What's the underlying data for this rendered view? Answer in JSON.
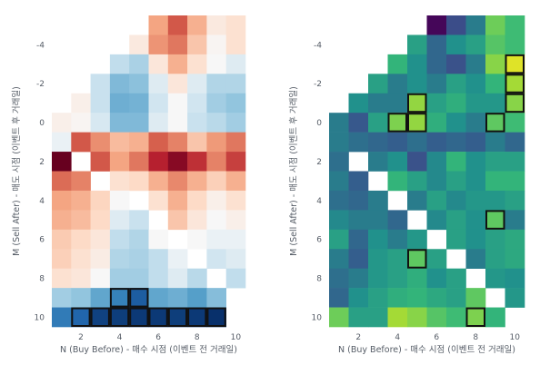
{
  "chart_data": [
    {
      "type": "heatmap",
      "color_scale": "RdBu (red = high, blue = low)",
      "xlabel": "N (Buy Before) - 매수 시점 (이벤트 전 거래일)",
      "ylabel": "M (Sell After) - 매도 시점 (이벤트 후 거래일)",
      "x_ticks": [
        "2",
        "4",
        "6",
        "8",
        "10"
      ],
      "y_ticks": [
        "-4",
        "-2",
        "0",
        "2",
        "4",
        "6",
        "8",
        "10"
      ],
      "x_range": [
        1,
        10
      ],
      "y_range": [
        -5,
        10
      ],
      "grid": false,
      "note_values": "cell values are relative color levels (0 = deepest blue, 1 = deepest red); blank cells are missing",
      "rows": [
        {
          "m": -5,
          "cells": [
            null,
            null,
            null,
            null,
            null,
            0.72,
            0.85,
            0.7,
            0.57,
            0.6
          ]
        },
        {
          "m": -4,
          "cells": [
            null,
            null,
            null,
            null,
            0.57,
            0.75,
            0.8,
            0.66,
            0.53,
            0.6
          ]
        },
        {
          "m": -3,
          "cells": [
            null,
            null,
            null,
            0.44,
            0.41,
            0.58,
            0.7,
            0.6,
            0.52,
            0.48
          ]
        },
        {
          "m": -2,
          "cells": [
            null,
            null,
            0.45,
            0.35,
            0.37,
            0.48,
            0.58,
            0.48,
            0.42,
            0.42
          ]
        },
        {
          "m": -1,
          "cells": [
            null,
            0.55,
            0.45,
            0.32,
            0.33,
            0.46,
            0.52,
            0.46,
            0.4,
            0.38
          ]
        },
        {
          "m": 0,
          "cells": [
            0.55,
            0.53,
            0.47,
            0.35,
            0.35,
            0.48,
            0.52,
            0.45,
            0.43,
            0.4
          ]
        },
        {
          "m": 1,
          "cells": [
            0.5,
            0.85,
            0.76,
            0.68,
            0.7,
            0.84,
            0.78,
            0.66,
            0.74,
            0.8
          ]
        },
        {
          "m": 2,
          "cells": [
            1.0,
            null,
            0.85,
            0.72,
            0.8,
            0.92,
            0.97,
            0.9,
            0.78,
            0.88
          ]
        },
        {
          "m": 3,
          "cells": [
            0.82,
            0.78,
            null,
            0.6,
            0.62,
            0.7,
            0.77,
            0.7,
            0.64,
            0.7
          ]
        },
        {
          "m": 4,
          "cells": [
            0.72,
            0.7,
            0.63,
            0.52,
            null,
            0.6,
            0.7,
            0.62,
            0.55,
            0.6
          ]
        },
        {
          "m": 5,
          "cells": [
            0.7,
            0.68,
            0.62,
            0.48,
            0.45,
            null,
            0.66,
            0.58,
            0.52,
            0.55
          ]
        },
        {
          "m": 6,
          "cells": [
            0.65,
            0.62,
            0.58,
            0.44,
            0.42,
            0.52,
            null,
            0.52,
            0.5,
            0.5
          ]
        },
        {
          "m": 7,
          "cells": [
            0.64,
            0.6,
            0.56,
            0.42,
            0.41,
            0.44,
            0.5,
            null,
            0.46,
            0.48
          ]
        },
        {
          "m": 8,
          "cells": [
            0.6,
            0.58,
            0.52,
            0.4,
            0.4,
            0.44,
            0.48,
            0.43,
            null,
            0.44
          ]
        },
        {
          "m": 9,
          "cells": [
            0.4,
            0.38,
            0.3,
            0.2,
            0.1,
            0.3,
            0.32,
            0.28,
            0.36,
            null
          ]
        },
        {
          "m": 10,
          "cells": [
            0.18,
            0.12,
            0.04,
            0.03,
            0.02,
            0.02,
            0.03,
            0.02,
            0.0,
            null
          ]
        }
      ],
      "highlighted": [
        [
          9,
          4
        ],
        [
          9,
          5
        ],
        [
          10,
          2
        ],
        [
          10,
          3
        ],
        [
          10,
          4
        ],
        [
          10,
          5
        ],
        [
          10,
          6
        ],
        [
          10,
          7
        ],
        [
          10,
          8
        ],
        [
          10,
          9
        ]
      ]
    },
    {
      "type": "heatmap",
      "color_scale": "Viridis (yellow = high, purple = low)",
      "xlabel": "N (Buy Before) - 매수 시점 (이벤트 전 거래일)",
      "ylabel": "M (Sell After) - 매도 시점 (이벤트 후 거래일)",
      "x_ticks": [
        "2",
        "4",
        "6",
        "8",
        "10"
      ],
      "y_ticks": [
        "-4",
        "-2",
        "0",
        "2",
        "4",
        "6",
        "8",
        "10"
      ],
      "x_range": [
        1,
        10
      ],
      "y_range": [
        -5,
        10
      ],
      "grid": false,
      "note_values": "cell values are relative color levels (0 = deepest purple, 1 = brightest yellow); blank cells are missing",
      "rows": [
        {
          "m": -5,
          "cells": [
            null,
            null,
            null,
            null,
            null,
            0.02,
            0.3,
            0.45,
            0.75,
            0.65
          ]
        },
        {
          "m": -4,
          "cells": [
            null,
            null,
            null,
            null,
            0.55,
            0.4,
            0.5,
            0.55,
            0.7,
            0.65
          ]
        },
        {
          "m": -3,
          "cells": [
            null,
            null,
            null,
            0.62,
            0.5,
            0.4,
            0.32,
            0.45,
            0.8,
            0.95
          ]
        },
        {
          "m": -2,
          "cells": [
            null,
            null,
            0.55,
            0.45,
            0.5,
            0.45,
            0.55,
            0.5,
            0.62,
            0.85
          ]
        },
        {
          "m": -1,
          "cells": [
            null,
            0.5,
            0.45,
            0.45,
            0.82,
            0.55,
            0.6,
            0.52,
            0.52,
            0.8
          ]
        },
        {
          "m": 0,
          "cells": [
            0.45,
            0.35,
            0.55,
            0.78,
            0.82,
            0.6,
            0.5,
            0.45,
            0.72,
            0.65
          ]
        },
        {
          "m": 1,
          "cells": [
            0.45,
            0.42,
            0.4,
            0.38,
            0.42,
            0.38,
            0.4,
            0.38,
            0.45,
            0.4
          ]
        },
        {
          "m": 2,
          "cells": [
            0.42,
            null,
            0.45,
            0.5,
            0.32,
            0.48,
            0.62,
            0.5,
            0.55,
            0.55
          ]
        },
        {
          "m": 3,
          "cells": [
            0.45,
            0.38,
            null,
            0.62,
            0.55,
            0.48,
            0.55,
            0.5,
            0.62,
            0.62
          ]
        },
        {
          "m": 4,
          "cells": [
            0.42,
            0.4,
            0.45,
            null,
            0.45,
            0.55,
            0.48,
            0.52,
            0.52,
            0.55
          ]
        },
        {
          "m": 5,
          "cells": [
            0.48,
            0.45,
            0.45,
            0.4,
            null,
            0.48,
            0.55,
            0.5,
            0.72,
            0.45
          ]
        },
        {
          "m": 6,
          "cells": [
            0.55,
            0.4,
            0.5,
            0.45,
            0.52,
            null,
            0.55,
            0.5,
            0.55,
            0.58
          ]
        },
        {
          "m": 7,
          "cells": [
            0.45,
            0.38,
            0.52,
            0.55,
            0.72,
            0.55,
            null,
            0.45,
            0.55,
            0.58
          ]
        },
        {
          "m": 8,
          "cells": [
            0.42,
            0.45,
            0.52,
            0.55,
            0.6,
            0.5,
            0.55,
            null,
            0.52,
            0.5
          ]
        },
        {
          "m": 9,
          "cells": [
            0.4,
            0.5,
            0.55,
            0.6,
            0.62,
            0.58,
            0.55,
            0.72,
            null,
            0.52
          ]
        },
        {
          "m": 10,
          "cells": [
            0.75,
            0.55,
            0.55,
            0.85,
            0.8,
            0.7,
            0.65,
            0.78,
            0.62,
            null
          ]
        }
      ],
      "highlighted": [
        [
          -1,
          5
        ],
        [
          0,
          4
        ],
        [
          0,
          5
        ],
        [
          -3,
          10
        ],
        [
          -2,
          10
        ],
        [
          -1,
          10
        ],
        [
          0,
          9
        ],
        [
          5,
          9
        ],
        [
          7,
          5
        ],
        [
          10,
          8
        ]
      ]
    }
  ]
}
